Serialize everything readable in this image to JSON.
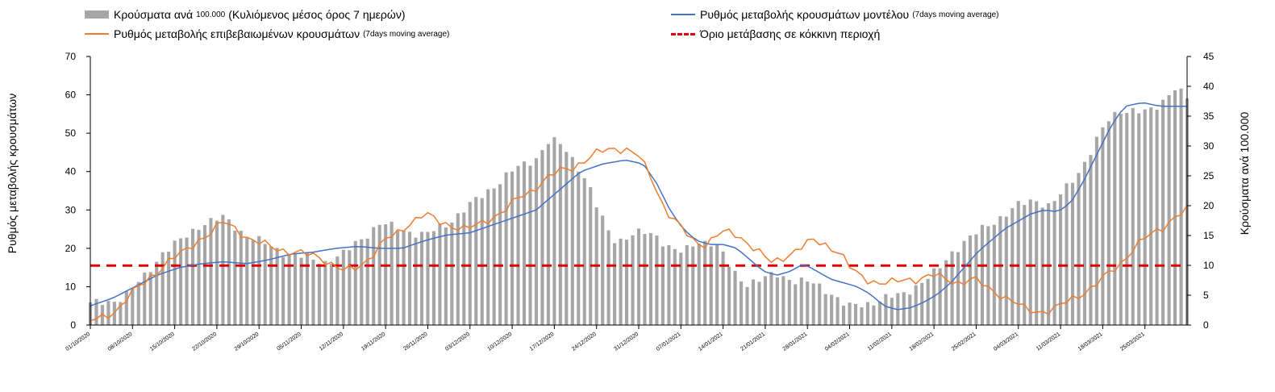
{
  "legend": {
    "bars": {
      "main": "Κρούσματα ανά",
      "mid": "100.000",
      "rest": "(Κυλιόμενος μέσος όρος",
      "end": "7 ημερών)"
    },
    "model": {
      "main": "Ρυθμός μεταβολής κρουσμάτων μοντέλου",
      "sub": "(7days moving average)"
    },
    "confirmed": {
      "main": "Ρυθμός μεταβολής επιβεβαιωμένων κρουσμάτων",
      "sub": "(7days moving average)"
    },
    "threshold": {
      "main": "Όριο μετάβασης σε κόκκινη περιοχή"
    }
  },
  "colors": {
    "bars": "#a6a6a6",
    "model": "#4472c4",
    "confirmed": "#ed7d31",
    "threshold": "#e00000",
    "axis": "#000000"
  },
  "chart_data": {
    "type": "bar",
    "ylabel_left": "Ρυθμός μεταβολής κρουσμάτων",
    "ylabel_right": "Κρούσματα ανά 100.000",
    "ylim_left": [
      0,
      70
    ],
    "yticks_left": [
      "0",
      "10",
      "20",
      "30",
      "40",
      "50",
      "60",
      "70"
    ],
    "ylim_right": [
      0,
      45
    ],
    "yticks_right": [
      "0",
      "5",
      "10",
      "15",
      "20",
      "25",
      "30",
      "35",
      "40",
      "45"
    ],
    "xtick_labels": [
      "01/10/2020",
      "08/10/2020",
      "15/10/2020",
      "22/10/2020",
      "29/10/2020",
      "05/11/2020",
      "12/11/2020",
      "19/11/2020",
      "26/11/2020",
      "03/12/2020",
      "10/12/2020",
      "17/12/2020",
      "24/12/2020",
      "31/12/2020",
      "07/01/2021",
      "14/01/2021",
      "21/01/2021",
      "28/01/2021",
      "04/02/2021",
      "11/02/2021",
      "18/02/2021",
      "25/02/2021",
      "04/03/2021",
      "11/03/2021",
      "18/03/2021",
      "25/03/2021"
    ],
    "days": 183,
    "series": [
      {
        "name": "Κρούσματα ανά 100.000 (Κυλιόμενος μέσος όρος 7 ημερών)",
        "axis": "right",
        "type": "bar",
        "keypoints": [
          [
            0,
            3.5
          ],
          [
            5,
            4
          ],
          [
            8,
            5
          ],
          [
            12,
            8
          ],
          [
            16,
            12
          ],
          [
            20,
            14
          ],
          [
            25,
            17
          ],
          [
            30,
            18
          ],
          [
            35,
            15
          ],
          [
            38,
            14
          ],
          [
            41,
            13
          ],
          [
            44,
            12
          ],
          [
            47,
            11.5
          ],
          [
            50,
            11
          ],
          [
            53,
            10.5
          ],
          [
            57,
            12
          ],
          [
            60,
            14
          ],
          [
            65,
            17
          ],
          [
            70,
            16
          ],
          [
            75,
            15
          ],
          [
            80,
            17
          ],
          [
            85,
            20
          ],
          [
            90,
            23
          ],
          [
            95,
            26
          ],
          [
            100,
            28
          ],
          [
            103,
            31
          ],
          [
            106,
            30
          ],
          [
            110,
            26
          ],
          [
            112,
            23
          ],
          [
            114,
            19
          ],
          [
            116,
            16
          ],
          [
            118,
            14
          ],
          [
            121,
            15
          ],
          [
            124,
            15.5
          ],
          [
            127,
            15
          ],
          [
            130,
            13
          ],
          [
            133,
            12
          ],
          [
            136,
            14
          ],
          [
            139,
            14
          ],
          [
            141,
            13
          ],
          [
            144,
            9
          ],
          [
            147,
            7
          ],
          [
            150,
            7.5
          ],
          [
            154,
            8.5
          ],
          [
            158,
            7.5
          ],
          [
            162,
            7
          ],
          [
            166,
            5.5
          ],
          [
            170,
            3
          ],
          [
            174,
            3.5
          ],
          [
            178,
            4.5
          ],
          [
            182,
            5
          ],
          [
            186,
            7
          ],
          [
            190,
            9
          ],
          [
            193,
            12
          ],
          [
            196,
            14
          ],
          [
            200,
            16
          ],
          [
            204,
            18
          ],
          [
            208,
            20
          ],
          [
            212,
            21
          ],
          [
            215,
            20
          ],
          [
            218,
            22
          ],
          [
            222,
            26
          ],
          [
            225,
            30
          ],
          [
            228,
            34
          ],
          [
            231,
            36
          ],
          [
            234,
            36
          ],
          [
            237,
            35.5
          ],
          [
            240,
            37
          ],
          [
            243,
            40
          ],
          [
            246,
            38
          ]
        ]
      },
      {
        "name": "Ρυθμός μεταβολής κρουσμάτων μοντέλου (7days moving average)",
        "axis": "left",
        "type": "line",
        "keypoints": [
          [
            0,
            5
          ],
          [
            5,
            7
          ],
          [
            10,
            10
          ],
          [
            15,
            13
          ],
          [
            20,
            15
          ],
          [
            25,
            16
          ],
          [
            30,
            16.5
          ],
          [
            35,
            16
          ],
          [
            40,
            17
          ],
          [
            45,
            18.5
          ],
          [
            50,
            19
          ],
          [
            55,
            20
          ],
          [
            60,
            20.5
          ],
          [
            65,
            20
          ],
          [
            70,
            20
          ],
          [
            75,
            22
          ],
          [
            80,
            23.5
          ],
          [
            85,
            24
          ],
          [
            90,
            26
          ],
          [
            95,
            28
          ],
          [
            100,
            30
          ],
          [
            105,
            35
          ],
          [
            110,
            40
          ],
          [
            115,
            42
          ],
          [
            120,
            43
          ],
          [
            124,
            42
          ],
          [
            127,
            37
          ],
          [
            130,
            30
          ],
          [
            133,
            25
          ],
          [
            136,
            22
          ],
          [
            139,
            21
          ],
          [
            142,
            21
          ],
          [
            145,
            20
          ],
          [
            148,
            17
          ],
          [
            151,
            14
          ],
          [
            154,
            13
          ],
          [
            157,
            14
          ],
          [
            160,
            16
          ],
          [
            163,
            14
          ],
          [
            166,
            12
          ],
          [
            169,
            11
          ],
          [
            172,
            10
          ],
          [
            175,
            8
          ],
          [
            178,
            5
          ],
          [
            181,
            4
          ],
          [
            184,
            4.5
          ],
          [
            187,
            6
          ],
          [
            190,
            8
          ],
          [
            193,
            11
          ],
          [
            196,
            15
          ],
          [
            199,
            19
          ],
          [
            202,
            22
          ],
          [
            205,
            25
          ],
          [
            208,
            27
          ],
          [
            211,
            29
          ],
          [
            214,
            30
          ],
          [
            217,
            29.5
          ],
          [
            220,
            32
          ],
          [
            223,
            38
          ],
          [
            226,
            45
          ],
          [
            229,
            52
          ],
          [
            232,
            57
          ],
          [
            236,
            58
          ],
          [
            240,
            57
          ],
          [
            246,
            57
          ]
        ]
      },
      {
        "name": "Ρυθμός μεταβολής επιβεβαιωμένων κρουσμάτων (7days moving average)",
        "axis": "left",
        "type": "line",
        "keypoints": [
          [
            0,
            1
          ],
          [
            3,
            2
          ],
          [
            6,
            4
          ],
          [
            9,
            8
          ],
          [
            12,
            11
          ],
          [
            15,
            14
          ],
          [
            18,
            17
          ],
          [
            21,
            19
          ],
          [
            24,
            22
          ],
          [
            27,
            24
          ],
          [
            30,
            27
          ],
          [
            33,
            25
          ],
          [
            36,
            22
          ],
          [
            39,
            21
          ],
          [
            42,
            20
          ],
          [
            45,
            19
          ],
          [
            48,
            18.5
          ],
          [
            51,
            18
          ],
          [
            54,
            16
          ],
          [
            57,
            14
          ],
          [
            60,
            15
          ],
          [
            63,
            18
          ],
          [
            66,
            22
          ],
          [
            69,
            24
          ],
          [
            72,
            27
          ],
          [
            75,
            29
          ],
          [
            78,
            27
          ],
          [
            81,
            26
          ],
          [
            84,
            25
          ],
          [
            87,
            26
          ],
          [
            90,
            28
          ],
          [
            93,
            30
          ],
          [
            96,
            33
          ],
          [
            99,
            35
          ],
          [
            102,
            38
          ],
          [
            105,
            40
          ],
          [
            108,
            41
          ],
          [
            111,
            43
          ],
          [
            114,
            45
          ],
          [
            117,
            46
          ],
          [
            120,
            46
          ],
          [
            123,
            44
          ],
          [
            126,
            38
          ],
          [
            129,
            30
          ],
          [
            132,
            26
          ],
          [
            135,
            22
          ],
          [
            138,
            21
          ],
          [
            141,
            24
          ],
          [
            144,
            24
          ],
          [
            147,
            22
          ],
          [
            150,
            19
          ],
          [
            153,
            16
          ],
          [
            156,
            18
          ],
          [
            159,
            20
          ],
          [
            162,
            22
          ],
          [
            165,
            21
          ],
          [
            168,
            19
          ],
          [
            171,
            14
          ],
          [
            174,
            12
          ],
          [
            177,
            11
          ],
          [
            180,
            11
          ],
          [
            183,
            12
          ],
          [
            186,
            12
          ],
          [
            189,
            13
          ],
          [
            192,
            12
          ],
          [
            195,
            11
          ],
          [
            198,
            12
          ],
          [
            201,
            10
          ],
          [
            204,
            8
          ],
          [
            207,
            6
          ],
          [
            210,
            4
          ],
          [
            213,
            3.5
          ],
          [
            216,
            4
          ],
          [
            219,
            6
          ],
          [
            222,
            8
          ],
          [
            225,
            10
          ],
          [
            228,
            13
          ],
          [
            231,
            16
          ],
          [
            234,
            20
          ],
          [
            237,
            23
          ],
          [
            240,
            25
          ],
          [
            243,
            28
          ],
          [
            246,
            30
          ]
        ]
      },
      {
        "name": "Όριο μετάβασης σε κόκκινη περιοχή",
        "axis": "left",
        "type": "hline",
        "value": 15.5
      }
    ]
  }
}
